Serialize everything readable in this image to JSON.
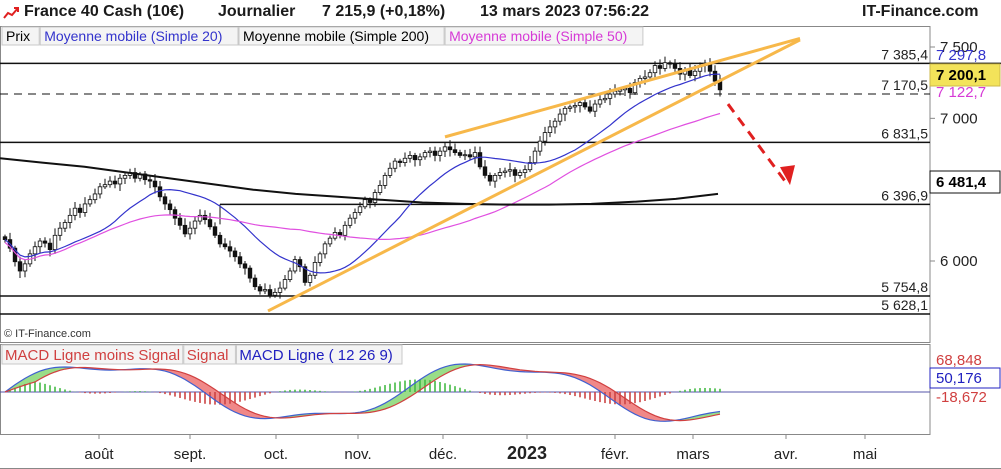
{
  "header": {
    "instrument": "France 40 Cash (10€)",
    "period": "Journalier",
    "quote": "7 215,9 (+0,18%)",
    "datetime": "13 mars 2023 07:56:22",
    "site": "IT-Finance.com"
  },
  "legend_top": [
    {
      "label": "Prix",
      "color": "#000000"
    },
    {
      "label": "Moyenne mobile (Simple 20)",
      "color": "#3333cc"
    },
    {
      "label": "Moyenne mobile (Simple 200)",
      "color": "#000000"
    },
    {
      "label": "Moyenne mobile (Simple 50)",
      "color": "#d63ad6"
    }
  ],
  "legend_bottom": [
    {
      "label": "MACD Ligne moins Signal",
      "color": "#d04040"
    },
    {
      "label": "Signal",
      "color": "#d04040"
    },
    {
      "label": "MACD Ligne ( 12 26 9)",
      "color": "#2020c0"
    }
  ],
  "watermark": "© IT-Finance.com",
  "colors": {
    "candle": "#111111",
    "sma20": "#3333cc",
    "sma50": "#e050e0",
    "sma200": "#111111",
    "channel": "#f7b84a",
    "arrow": "#e02020",
    "macd_pos": "#44bb44",
    "macd_neg": "#cc4444",
    "macd_line": "#4060d0",
    "signal_line": "#d04040",
    "fill_up": "#99dd88",
    "fill_down": "#f08888"
  },
  "chart_data": [
    {
      "type": "candlestick",
      "title": "France 40 Cash (10€)",
      "x_labels": [
        {
          "label": "août",
          "date": "2022-08-01"
        },
        {
          "label": "sept.",
          "date": "2022-09-01"
        },
        {
          "label": "oct.",
          "date": "2022-10-01"
        },
        {
          "label": "nov.",
          "date": "2022-11-01"
        },
        {
          "label": "déc.",
          "date": "2022-12-01"
        },
        {
          "label": "2023",
          "date": "2023-01-01",
          "bold": true
        },
        {
          "label": "févr.",
          "date": "2023-02-01"
        },
        {
          "label": "mars",
          "date": "2023-03-01"
        },
        {
          "label": "avr.",
          "date": "2023-04-01"
        },
        {
          "label": "mai",
          "date": "2023-05-01"
        }
      ],
      "y_ticks": [
        6000,
        7000,
        7500
      ],
      "ylim": [
        5580,
        7560
      ],
      "series_close": [
        6150,
        6090,
        5995,
        5930,
        5980,
        6050,
        6100,
        6140,
        6125,
        6080,
        6180,
        6230,
        6270,
        6320,
        6370,
        6340,
        6400,
        6430,
        6470,
        6520,
        6535,
        6560,
        6540,
        6580,
        6600,
        6620,
        6580,
        6610,
        6570,
        6560,
        6520,
        6450,
        6400,
        6360,
        6300,
        6250,
        6190,
        6230,
        6280,
        6320,
        6290,
        6240,
        6180,
        6120,
        6100,
        6070,
        6030,
        5980,
        5950,
        5880,
        5820,
        5790,
        5800,
        5760,
        5780,
        5810,
        5870,
        5930,
        6010,
        5960,
        5850,
        5900,
        5990,
        6050,
        6120,
        6160,
        6200,
        6180,
        6250,
        6300,
        6340,
        6380,
        6430,
        6410,
        6480,
        6530,
        6600,
        6650,
        6700,
        6690,
        6720,
        6740,
        6710,
        6730,
        6760,
        6770,
        6740,
        6770,
        6800,
        6780,
        6760,
        6740,
        6745,
        6730,
        6760,
        6660,
        6600,
        6560,
        6600,
        6620,
        6630,
        6640,
        6600,
        6620,
        6640,
        6690,
        6770,
        6840,
        6900,
        6940,
        6980,
        7030,
        7070,
        7080,
        7090,
        7110,
        7080,
        7050,
        7100,
        7130,
        7140,
        7170,
        7190,
        7200,
        7210,
        7180,
        7250,
        7280,
        7290,
        7320,
        7370,
        7350,
        7390,
        7380,
        7350,
        7310,
        7340,
        7300,
        7330,
        7370,
        7380,
        7330,
        7260,
        7200
      ],
      "series": [
        {
          "name": "Moyenne mobile (Simple 20)",
          "last": 7297.8
        },
        {
          "name": "Moyenne mobile (Simple 200)",
          "last": 6481.4
        },
        {
          "name": "Moyenne mobile (Simple 50)",
          "last": 7122.7
        }
      ],
      "last_price": 7200.1,
      "levels": [
        {
          "label": "7 385,4",
          "value": 7385.4,
          "style": "solid"
        },
        {
          "label": "7 170,5",
          "value": 7170.5,
          "style": "dashed"
        },
        {
          "label": "6 831,5",
          "value": 6831.5,
          "style": "solid"
        },
        {
          "label": "6 396,9",
          "value": 6396.9,
          "style": "solid"
        },
        {
          "label": "5 754,8",
          "value": 5754.8,
          "style": "solid"
        },
        {
          "label": "5 628,1",
          "value": 5628.1,
          "style": "solid"
        }
      ],
      "price_badges": [
        {
          "label": "7 297,8",
          "value": 7297.8,
          "color": "#3333cc"
        },
        {
          "label": "7 200,1",
          "value": 7200.1,
          "color": "#000000"
        },
        {
          "label": "7 122,7",
          "value": 7122.7,
          "color": "#d63ad6"
        },
        {
          "label": "6 481,4",
          "value": 6481.4,
          "color": "#000000"
        }
      ],
      "y_tick_labels": [
        {
          "label": "7 500",
          "value": 7500
        },
        {
          "label": "7 000",
          "value": 7000
        },
        {
          "label": "6 000",
          "value": 6000
        }
      ]
    },
    {
      "type": "macd",
      "title": "MACD Ligne ( 12 26 9)",
      "badges": [
        {
          "label": "68,848",
          "value": 68.848,
          "color": "#d04040"
        },
        {
          "label": "50,176",
          "value": 50.176,
          "color": "#2020c0"
        },
        {
          "label": "-18,672",
          "value": -18.672,
          "color": "#d04040"
        }
      ]
    }
  ]
}
